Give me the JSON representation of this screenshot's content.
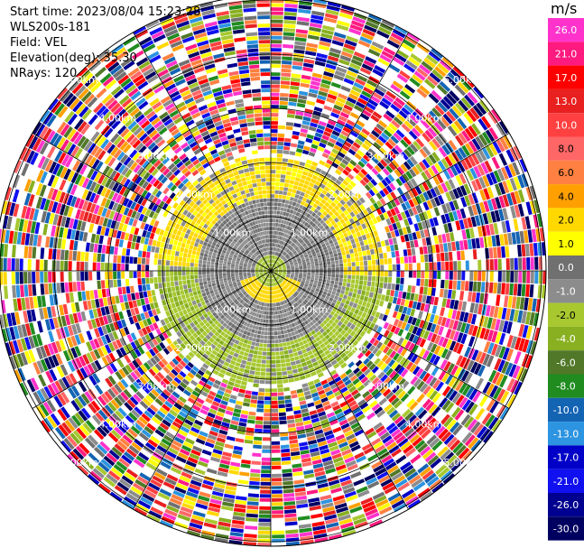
{
  "header": {
    "start_time": "Start time: 2023/08/04 15:23:28",
    "station": "WLS200s-181",
    "field": "Field: VEL",
    "elevation": "Elevation(deg): 35.30",
    "nrays": "NRays: 120"
  },
  "chart_data": {
    "type": "polar-ppi",
    "title": "",
    "field": "VEL",
    "units": "m/s",
    "n_rays": 120,
    "elevation_deg": 35.3,
    "range_rings_km": [
      1.0,
      2.0,
      3.0,
      4.0,
      5.0
    ],
    "ring_labels": [
      "1.00km",
      "2.00km",
      "3.00km",
      "4.00km",
      "5.00km"
    ],
    "colorbar": {
      "unit_label": "m/s",
      "ticks": [
        "26.0",
        "21.0",
        "17.0",
        "13.0",
        "10.0",
        "8.0",
        "6.0",
        "4.0",
        "2.0",
        "1.0",
        "0.0",
        "-1.0",
        "-2.0",
        "-4.0",
        "-6.0",
        "-8.0",
        "-10.0",
        "-13.0",
        "-17.0",
        "-21.0",
        "-26.0",
        "-30.0"
      ],
      "colors": [
        "#ff33cc",
        "#ff1a80",
        "#ff0000",
        "#e82020",
        "#ff4040",
        "#ff6666",
        "#ff8040",
        "#ffa000",
        "#ffd800",
        "#ffff00",
        "#707070",
        "#8c8c8c",
        "#a8c830",
        "#88b020",
        "#507828",
        "#208c20",
        "#1464b4",
        "#2c94e0",
        "#0000c8",
        "#1010f0",
        "#000090",
        "#000060"
      ]
    },
    "regions": [
      {
        "range_km": [
          0.0,
          0.25
        ],
        "description": "near-zero",
        "color": "#a8c830"
      },
      {
        "range_km": [
          0.25,
          1.3
        ],
        "description": "near-zero velocity",
        "color": "#8c8c8c"
      },
      {
        "range_km": [
          1.3,
          2.2
        ],
        "description": "weak toward (north) / away (south)",
        "color": "#ffd800"
      },
      {
        "range_km": [
          2.2,
          5.5
        ],
        "description": "noise",
        "color": "mixed"
      }
    ]
  }
}
